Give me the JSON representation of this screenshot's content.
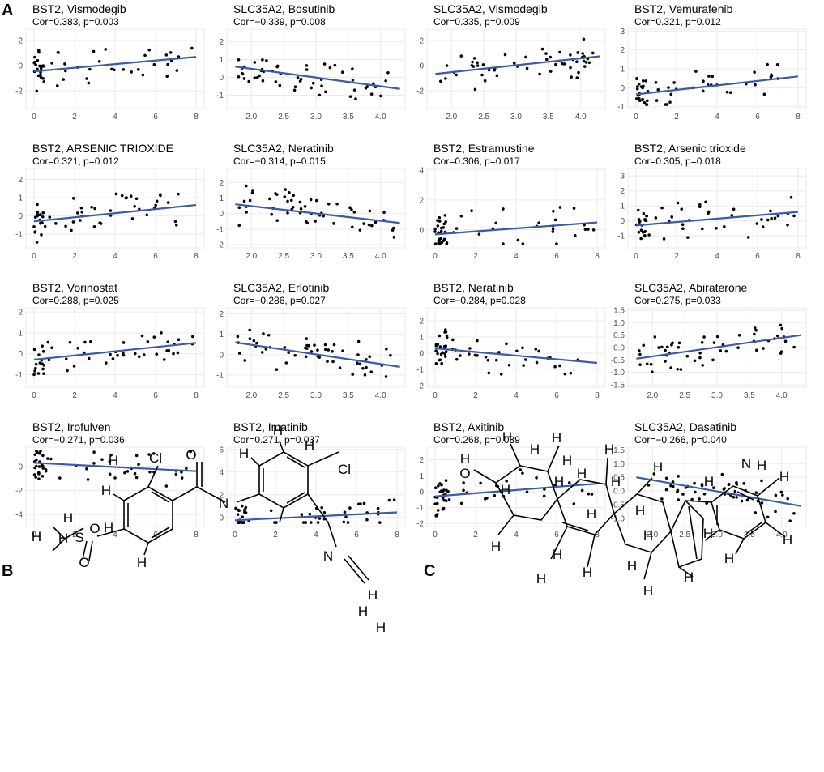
{
  "panels": {
    "a": "A",
    "b": "B",
    "c": "C"
  },
  "style": {
    "line_color": "#3a5ba9",
    "grid_color": "#ebebeb",
    "point_color": "#000000"
  },
  "chart_data": [
    {
      "type": "scatter",
      "title": "BST2, Vismodegib",
      "subtitle": "Cor=0.383, p=0.003",
      "xlim": [
        -0.4,
        8.4
      ],
      "ylim": [
        -3.4,
        2.9
      ],
      "xticks": [
        0,
        2,
        4,
        6,
        8
      ],
      "yticks": [
        -2,
        0,
        2
      ],
      "trend": [
        [
          0,
          -0.45
        ],
        [
          8,
          0.7
        ]
      ],
      "seed": 1
    },
    {
      "type": "scatter",
      "title": "SLC35A2, Bosutinib",
      "subtitle": "Cor=−0.339, p=0.008",
      "xlim": [
        1.62,
        4.38
      ],
      "ylim": [
        -1.75,
        2.7
      ],
      "xticks": [
        2.0,
        2.5,
        3.0,
        3.5,
        4.0
      ],
      "yticks": [
        -1,
        0,
        1,
        2
      ],
      "trend": [
        [
          1.75,
          0.6
        ],
        [
          4.3,
          -0.65
        ]
      ],
      "seed": 2
    },
    {
      "type": "scatter",
      "title": "SLC35A2, Vismodegib",
      "subtitle": "Cor=0.335, p=0.009",
      "xlim": [
        1.62,
        4.38
      ],
      "ylim": [
        -3.4,
        2.9
      ],
      "xticks": [
        2.0,
        2.5,
        3.0,
        3.5,
        4.0
      ],
      "yticks": [
        -2,
        0,
        2
      ],
      "trend": [
        [
          1.75,
          -0.65
        ],
        [
          4.3,
          0.75
        ]
      ],
      "seed": 3
    },
    {
      "type": "scatter",
      "title": "BST2, Vemurafenib",
      "subtitle": "Cor=0.321, p=0.012",
      "xlim": [
        -0.4,
        8.4
      ],
      "ylim": [
        -1.1,
        3.1
      ],
      "xticks": [
        0,
        2,
        4,
        6,
        8
      ],
      "yticks": [
        -1,
        0,
        1,
        2,
        3
      ],
      "trend": [
        [
          0,
          -0.35
        ],
        [
          8,
          0.6
        ]
      ],
      "seed": 4
    },
    {
      "type": "scatter",
      "title": "BST2, ARSENIC TRIOXIDE",
      "subtitle": "Cor=0.321, p=0.012",
      "xlim": [
        -0.4,
        8.4
      ],
      "ylim": [
        -1.75,
        2.6
      ],
      "xticks": [
        0,
        2,
        4,
        6,
        8
      ],
      "yticks": [
        -1,
        0,
        1,
        2
      ],
      "trend": [
        [
          0,
          -0.3
        ],
        [
          8,
          0.6
        ]
      ],
      "seed": 5
    },
    {
      "type": "scatter",
      "title": "SLC35A2, Neratinib",
      "subtitle": "Cor=−0.314, p=0.015",
      "xlim": [
        1.62,
        4.38
      ],
      "ylim": [
        -2.2,
        2.9
      ],
      "xticks": [
        2.0,
        2.5,
        3.0,
        3.5,
        4.0
      ],
      "yticks": [
        -2,
        -1,
        0,
        1,
        2
      ],
      "trend": [
        [
          1.75,
          0.6
        ],
        [
          4.3,
          -0.6
        ]
      ],
      "seed": 6
    },
    {
      "type": "scatter",
      "title": "BST2, Estramustine",
      "subtitle": "Cor=0.306, p=0.017",
      "xlim": [
        -0.4,
        8.4
      ],
      "ylim": [
        -1.2,
        4.1
      ],
      "xticks": [
        0,
        2,
        4,
        6,
        8
      ],
      "yticks": [
        0,
        2,
        4
      ],
      "trend": [
        [
          0,
          -0.3
        ],
        [
          8,
          0.5
        ]
      ],
      "seed": 7
    },
    {
      "type": "scatter",
      "title": "BST2, Arsenic trioxide",
      "subtitle": "Cor=0.305, p=0.018",
      "xlim": [
        -0.4,
        8.4
      ],
      "ylim": [
        -1.8,
        3.5
      ],
      "xticks": [
        0,
        2,
        4,
        6,
        8
      ],
      "yticks": [
        -1,
        0,
        1,
        2,
        3
      ],
      "trend": [
        [
          0,
          -0.3
        ],
        [
          8,
          0.6
        ]
      ],
      "seed": 8
    },
    {
      "type": "scatter",
      "title": "BST2, Vorinostat",
      "subtitle": "Cor=0.288, p=0.025",
      "xlim": [
        -0.4,
        8.4
      ],
      "ylim": [
        -1.6,
        2.2
      ],
      "xticks": [
        0,
        2,
        4,
        6,
        8
      ],
      "yticks": [
        -1,
        0,
        1,
        2
      ],
      "trend": [
        [
          0,
          -0.28
        ],
        [
          8,
          0.52
        ]
      ],
      "seed": 9
    },
    {
      "type": "scatter",
      "title": "SLC35A2, Erlotinib",
      "subtitle": "Cor=−0.286, p=0.027",
      "xlim": [
        1.62,
        4.38
      ],
      "ylim": [
        -1.6,
        2.3
      ],
      "xticks": [
        2.0,
        2.5,
        3.0,
        3.5,
        4.0
      ],
      "yticks": [
        -1,
        0,
        1,
        2
      ],
      "trend": [
        [
          1.75,
          0.6
        ],
        [
          4.3,
          -0.6
        ]
      ],
      "seed": 10
    },
    {
      "type": "scatter",
      "title": "BST2, Neratinib",
      "subtitle": "Cor=−0.284, p=0.028",
      "xlim": [
        -0.4,
        8.4
      ],
      "ylim": [
        -2.1,
        2.8
      ],
      "xticks": [
        0,
        2,
        4,
        6,
        8
      ],
      "yticks": [
        -2,
        -1,
        0,
        1,
        2
      ],
      "trend": [
        [
          0,
          0.3
        ],
        [
          8,
          -0.6
        ]
      ],
      "seed": 11
    },
    {
      "type": "scatter",
      "title": "SLC35A2, Abiraterone",
      "subtitle": "Cor=0.275, p=0.033",
      "xlim": [
        1.62,
        4.38
      ],
      "ylim": [
        -1.6,
        1.6
      ],
      "xticks": [
        2.0,
        2.5,
        3.0,
        3.5,
        4.0
      ],
      "yticks": [
        -1.5,
        -1.0,
        -0.5,
        0.0,
        0.5,
        1.0,
        1.5
      ],
      "trend": [
        [
          1.75,
          -0.45
        ],
        [
          4.3,
          0.5
        ]
      ],
      "seed": 12
    },
    {
      "type": "scatter",
      "title": "BST2, Irofulven",
      "subtitle": "Cor=−0.271, p=0.036",
      "xlim": [
        -0.4,
        8.4
      ],
      "ylim": [
        -5,
        1.6
      ],
      "xticks": [
        0,
        2,
        4,
        6,
        8
      ],
      "yticks": [
        -4,
        -2,
        0
      ],
      "trend": [
        [
          0,
          0.3
        ],
        [
          8,
          -0.4
        ]
      ],
      "seed": 13
    },
    {
      "type": "scatter",
      "title": "BST2, Imatinib",
      "subtitle": "Cor=0.271, p=0.037",
      "xlim": [
        -0.4,
        8.4
      ],
      "ylim": [
        -0.8,
        6.2
      ],
      "xticks": [
        0,
        2,
        4,
        6,
        8
      ],
      "yticks": [
        0,
        2,
        4,
        6
      ],
      "trend": [
        [
          0,
          -0.25
        ],
        [
          8,
          0.45
        ]
      ],
      "seed": 14
    },
    {
      "type": "scatter",
      "title": "BST2, Axitinib",
      "subtitle": "Cor=0.268, p=0.039",
      "xlim": [
        -0.4,
        8.4
      ],
      "ylim": [
        -2.2,
        2.8
      ],
      "xticks": [
        0,
        2,
        4,
        6,
        8
      ],
      "yticks": [
        -2,
        -1,
        0,
        1,
        2
      ],
      "trend": [
        [
          0,
          -0.3
        ],
        [
          8,
          0.5
        ]
      ],
      "seed": 15
    },
    {
      "type": "scatter",
      "title": "SLC35A2, Dasatinib",
      "subtitle": "Cor=−0.266, p=0.040",
      "xlim": [
        1.62,
        4.38
      ],
      "ylim": [
        -1.3,
        1.6
      ],
      "xticks": [
        2.0,
        2.5,
        3.0,
        3.5,
        4.0
      ],
      "yticks": [
        -1.0,
        -0.5,
        0.0,
        0.5,
        1.0,
        1.5
      ],
      "trend": [
        [
          1.75,
          0.5
        ],
        [
          4.3,
          -0.55
        ]
      ],
      "seed": 16
    }
  ],
  "molecules": {
    "b_labels": [
      "H",
      "Cl",
      "O",
      "H",
      "H",
      "Cl",
      "H",
      "H",
      "N",
      "H",
      "O",
      "S",
      "H",
      "H",
      "H",
      "O",
      "H",
      "N",
      "H",
      "H",
      "H"
    ],
    "c_labels": [
      "H",
      "H",
      "O",
      "H",
      "H",
      "H",
      "H",
      "H",
      "H",
      "H",
      "H",
      "H",
      "H",
      "H",
      "H",
      "H",
      "H",
      "H",
      "H",
      "N",
      "H",
      "H",
      "H",
      "H",
      "H",
      "H",
      "H",
      "H",
      "H"
    ]
  }
}
